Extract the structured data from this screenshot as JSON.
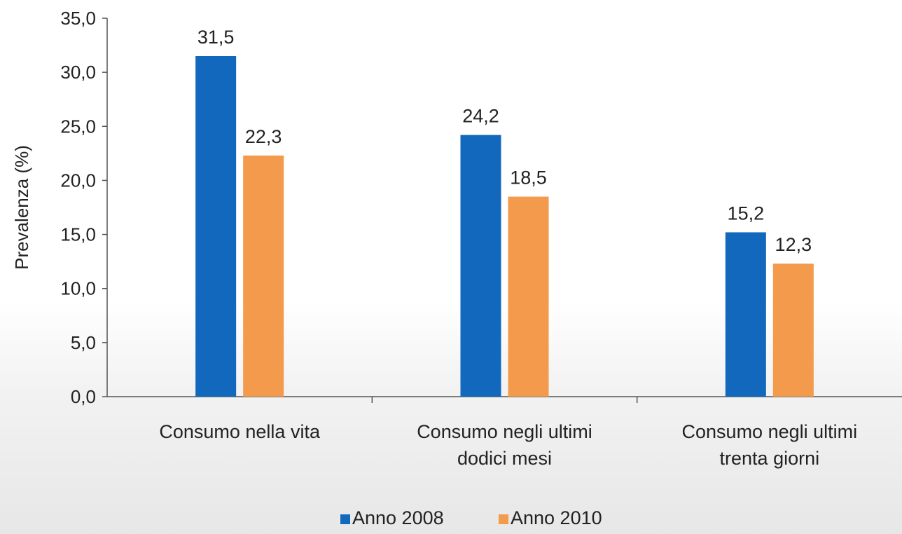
{
  "chart_data": {
    "type": "bar",
    "categories": [
      [
        "Consumo nella vita"
      ],
      [
        "Consumo negli ultimi",
        "dodici mesi"
      ],
      [
        "Consumo negli ultimi",
        "trenta giorni"
      ]
    ],
    "series": [
      {
        "name": "Anno 2008",
        "values": [
          31.5,
          24.2,
          15.2
        ],
        "labels": [
          "31,5",
          "24,2",
          "15,2"
        ],
        "color": "#1168bd"
      },
      {
        "name": "Anno 2010",
        "values": [
          22.3,
          18.5,
          12.3
        ],
        "labels": [
          "22,3",
          "18,5",
          "12,3"
        ],
        "color": "#f39a4d"
      }
    ],
    "ylabel": "Prevalenza (%)",
    "xlabel": "",
    "title": "",
    "ylim": [
      0,
      35
    ],
    "yticks": [
      0,
      5,
      10,
      15,
      20,
      25,
      30,
      35
    ],
    "ytick_labels": [
      "0,0",
      "5,0",
      "10,0",
      "15,0",
      "20,0",
      "25,0",
      "30,0",
      "35,0"
    ],
    "grid": false,
    "legend_position": "bottom"
  }
}
